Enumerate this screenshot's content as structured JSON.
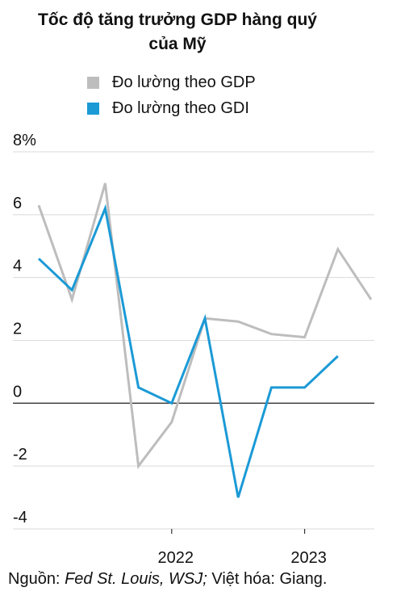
{
  "title_line1": "Tốc độ tăng trưởng GDP hàng quý",
  "title_line2": "của Mỹ",
  "legend": [
    {
      "label": "Đo lường theo GDP",
      "color": "#bdbdbd"
    },
    {
      "label": "Đo lường theo GDI",
      "color": "#1b9ad6"
    }
  ],
  "source": {
    "prefix": "Nguồn: ",
    "italic": "Fed St. Louis, WSJ;",
    "suffix": " Việt hóa: Giang."
  },
  "chart_data": {
    "type": "line",
    "x": [
      "2021 Q1",
      "2021 Q2",
      "2021 Q3",
      "2021 Q4",
      "2022 Q1",
      "2022 Q2",
      "2022 Q3",
      "2022 Q4",
      "2023 Q1",
      "2023 Q2",
      "2023 Q3",
      "2023 Q4"
    ],
    "x_tick_labels": [
      {
        "label": "2022",
        "at": "2022 Q1"
      },
      {
        "label": "2023",
        "at": "2023 Q1"
      }
    ],
    "y_tick_labels": [
      "8%",
      "6",
      "4",
      "2",
      "0",
      "-2",
      "-4"
    ],
    "y_ticks": [
      8,
      6,
      4,
      2,
      0,
      -2,
      -4
    ],
    "ylim": [
      -4,
      8
    ],
    "grid": true,
    "series": [
      {
        "name": "Đo lường theo GDP",
        "color": "#bdbdbd",
        "values": [
          6.3,
          3.3,
          7.0,
          -2.0,
          -0.6,
          2.7,
          2.6,
          2.2,
          2.1,
          4.9,
          3.3,
          null
        ]
      },
      {
        "name": "Đo lường theo GDI",
        "color": "#1b9ad6",
        "values": [
          4.6,
          3.6,
          6.2,
          0.5,
          0.0,
          2.7,
          -3.0,
          0.5,
          0.5,
          1.5,
          null,
          null
        ]
      }
    ]
  }
}
